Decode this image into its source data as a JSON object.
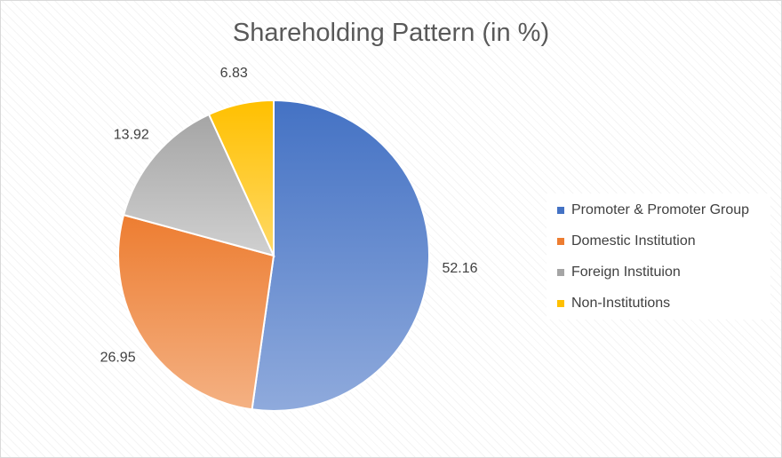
{
  "chart_data": {
    "type": "pie",
    "title": "Shareholding Pattern (in %)",
    "legend_position": "right",
    "grid": false,
    "slices": [
      {
        "label": "Promoter & Promoter Group",
        "value": 52.16,
        "value_label": "52.16",
        "color": "#4472C4",
        "color_light": "#8FAADC"
      },
      {
        "label": "Domestic Institution",
        "value": 26.95,
        "value_label": "26.95",
        "color": "#ED7D31",
        "color_light": "#F4B183"
      },
      {
        "label": "Foreign Instituion",
        "value": 13.92,
        "value_label": "13.92",
        "color": "#A5A5A5",
        "color_light": "#D0D0D0"
      },
      {
        "label": "Non-Institutions",
        "value": 6.83,
        "value_label": "6.83",
        "color": "#FFC000",
        "color_light": "#FFD966"
      }
    ]
  }
}
